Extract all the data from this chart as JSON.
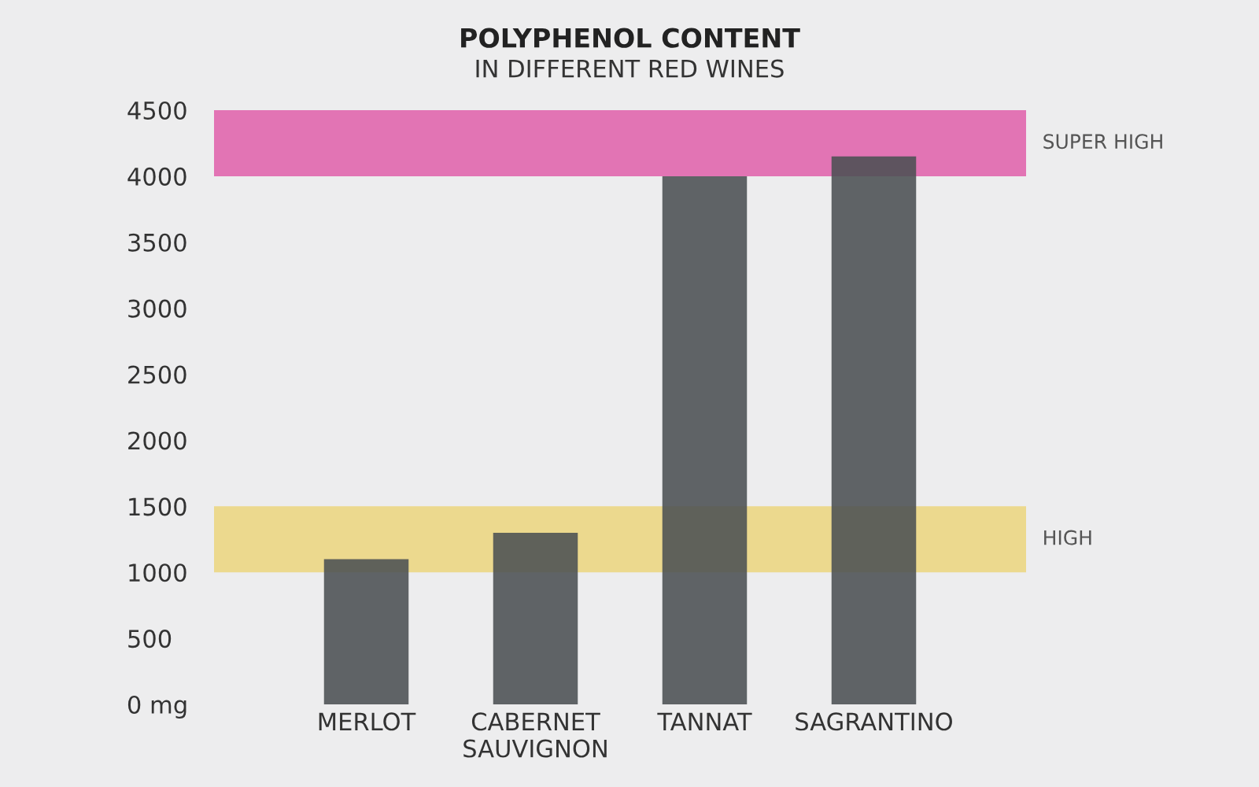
{
  "chart_data": {
    "type": "bar",
    "title": "POLYPHENOL CONTENT",
    "subtitle": "IN DIFFERENT RED WINES",
    "categories": [
      "MERLOT",
      "CABERNET\nSAUVIGNON",
      "TANNAT",
      "SAGRANTINO"
    ],
    "values": [
      1100,
      1300,
      4000,
      4150
    ],
    "color": "#4b5053",
    "ylim": [
      0,
      4500
    ],
    "yticks": [
      {
        "value": 0,
        "label": "0 mg"
      },
      500,
      1000,
      1500,
      2000,
      2500,
      3000,
      3500,
      4000,
      4500
    ],
    "bands": [
      {
        "axis": "y",
        "from": 1000,
        "to": 1500,
        "label": "HIGH",
        "color": "#ecd98e"
      },
      {
        "axis": "y",
        "from": 4000,
        "to": 4500,
        "label": "SUPER HIGH",
        "color": "#e274b4"
      }
    ],
    "grid": false,
    "legend": false
  }
}
